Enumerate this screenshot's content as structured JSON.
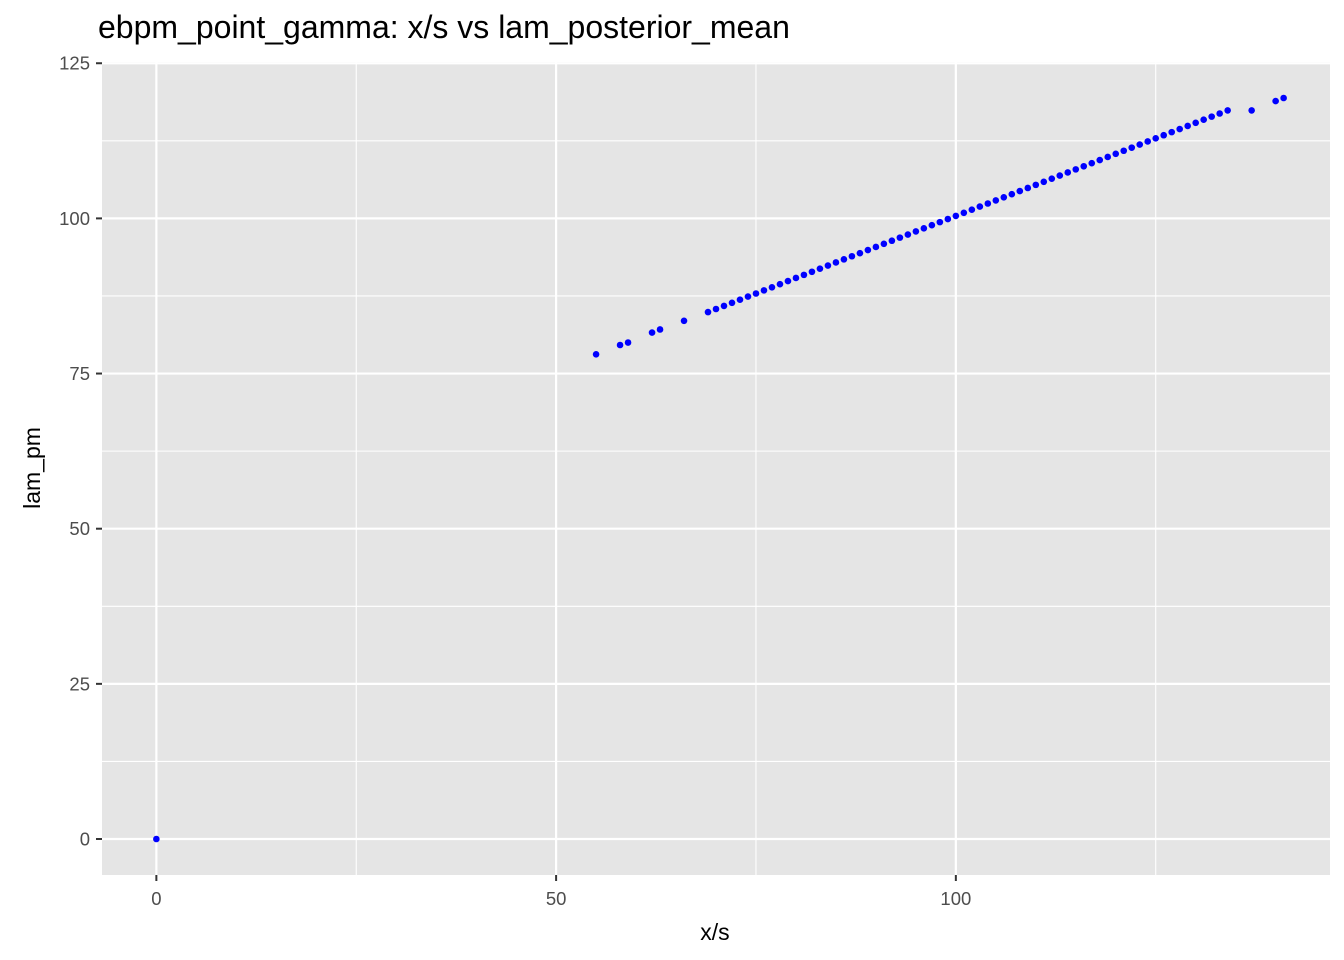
{
  "chart_data": {
    "type": "scatter",
    "title": "ebpm_point_gamma: x/s vs lam_posterior_mean",
    "xlabel": "x/s",
    "ylabel": "lam_pm",
    "xlim": [
      -6.8,
      146.8
    ],
    "ylim": [
      -5.8,
      125.2
    ],
    "x_ticks": [
      0,
      50,
      100
    ],
    "x_tick_labels": [
      "0",
      "50",
      "100"
    ],
    "x_minor_ticks": [
      25,
      75,
      125
    ],
    "y_ticks": [
      0,
      25,
      50,
      75,
      100,
      125
    ],
    "y_tick_labels": [
      "0",
      "25",
      "50",
      "75",
      "100",
      "125"
    ],
    "y_minor_ticks": [
      12.5,
      37.5,
      62.5,
      87.5,
      112.5
    ],
    "grid": true,
    "colors": {
      "panel": "#e5e5e5",
      "grid": "#ffffff",
      "point": "#0000ff",
      "tick": "#333333"
    },
    "series": [
      {
        "x": [
          0,
          55,
          58,
          59,
          62,
          63,
          66,
          69,
          70,
          71,
          72,
          73,
          74,
          75,
          76,
          77,
          78,
          79,
          80,
          81,
          82,
          83,
          84,
          85,
          86,
          87,
          88,
          89,
          90,
          91,
          92,
          93,
          94,
          95,
          96,
          97,
          98,
          99,
          100,
          101,
          102,
          103,
          104,
          105,
          106,
          107,
          108,
          109,
          110,
          111,
          112,
          113,
          114,
          115,
          116,
          117,
          118,
          119,
          120,
          121,
          122,
          123,
          124,
          125,
          126,
          127,
          128,
          129,
          130,
          131,
          132,
          133,
          134,
          137,
          140,
          141
        ],
        "y": [
          0,
          78.1,
          79.6,
          80.0,
          81.6,
          82.1,
          83.5,
          84.9,
          85.4,
          85.9,
          86.4,
          86.9,
          87.4,
          87.9,
          88.4,
          88.9,
          89.4,
          89.9,
          90.4,
          90.9,
          91.4,
          91.9,
          92.4,
          92.9,
          93.4,
          93.9,
          94.4,
          94.9,
          95.4,
          95.9,
          96.4,
          96.9,
          97.4,
          97.9,
          98.4,
          98.9,
          99.4,
          99.9,
          100.4,
          100.9,
          101.4,
          101.9,
          102.4,
          102.9,
          103.4,
          103.9,
          104.4,
          104.9,
          105.4,
          105.9,
          106.4,
          106.9,
          107.4,
          107.9,
          108.4,
          108.9,
          109.4,
          109.9,
          110.4,
          110.9,
          111.4,
          111.9,
          112.4,
          112.9,
          113.4,
          113.9,
          114.4,
          114.9,
          115.4,
          115.9,
          116.4,
          116.9,
          117.4,
          117.4,
          118.9,
          119.4
        ]
      }
    ]
  }
}
